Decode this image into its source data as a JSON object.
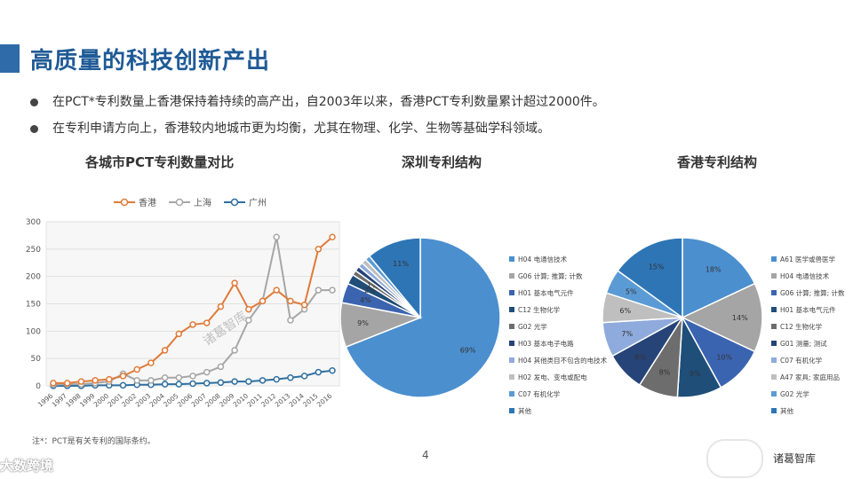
{
  "title": "高质量的科技创新产出",
  "bullets": [
    "在PCT*专利数量上香港保持着持续的高产出，自2003年以来，香港PCT专利数量累计超过2000件。",
    "在专利申请方向上，香港较内地城市更为均衡，尤其在物理、化学、生物等基础学科领域。"
  ],
  "footnote": "注*：PCT是有关专利的国际条约。",
  "page_number": "4",
  "watermarks": {
    "left": "大数跨境",
    "middle": "诸葛智库",
    "right": "诸葛智库"
  },
  "colors": {
    "hongkong": "#e07b39",
    "shanghai": "#a6a6a6",
    "guangzhou": "#2f6f9f",
    "title": "#1f5a96"
  },
  "chart_data": [
    {
      "type": "line",
      "title": "各城市PCT专利数量对比",
      "x": [
        "1996",
        "1997",
        "1998",
        "1999",
        "2000",
        "2001",
        "2002",
        "2003",
        "2004",
        "2005",
        "2006",
        "2007",
        "2008",
        "2009",
        "2010",
        "2011",
        "2012",
        "2013",
        "2014",
        "2015",
        "2016"
      ],
      "ylim": [
        0,
        300
      ],
      "yticks": [
        0,
        50,
        100,
        150,
        200,
        250,
        300
      ],
      "grid": true,
      "legend": "top",
      "series": [
        {
          "name": "香港",
          "color": "#e07b39",
          "values": [
            5,
            5,
            8,
            10,
            12,
            18,
            30,
            42,
            65,
            95,
            112,
            115,
            145,
            188,
            140,
            155,
            175,
            155,
            148,
            250,
            272
          ]
        },
        {
          "name": "上海",
          "color": "#a6a6a6",
          "values": [
            2,
            3,
            3,
            5,
            8,
            22,
            10,
            10,
            15,
            15,
            18,
            25,
            35,
            65,
            120,
            155,
            272,
            120,
            140,
            175,
            175
          ]
        },
        {
          "name": "广州",
          "color": "#2f6f9f",
          "values": [
            0,
            0,
            0,
            1,
            1,
            1,
            2,
            2,
            3,
            3,
            4,
            5,
            6,
            8,
            8,
            10,
            12,
            15,
            18,
            25,
            28
          ]
        }
      ]
    },
    {
      "type": "pie",
      "title": "深圳专利结构",
      "legend": "right",
      "slices": [
        {
          "label": "H04 电通信技术",
          "value": 69,
          "color": "#4b8fcf",
          "shown": "69%"
        },
        {
          "label": "G06 计算; 推算; 计数",
          "value": 9,
          "color": "#a5a5a5",
          "shown": "9%"
        },
        {
          "label": "H01 基本电气元件",
          "value": 4,
          "color": "#3b64b0",
          "shown": "4%"
        },
        {
          "label": "C12 生物化学",
          "value": 2,
          "color": "#1f4e79",
          "shown": "2%"
        },
        {
          "label": "G02 光学",
          "value": 1,
          "color": "#6d6d6d",
          "shown": "1%"
        },
        {
          "label": "H03 基本电子电路",
          "value": 1,
          "color": "#264478",
          "shown": ""
        },
        {
          "label": "H04 其他类目不包含的电技术",
          "value": 1,
          "color": "#8faadc",
          "shown": ""
        },
        {
          "label": "H02 发电、变电或配电",
          "value": 1,
          "color": "#bfbfbf",
          "shown": ""
        },
        {
          "label": "C07 有机化学",
          "value": 1,
          "color": "#5b9bd5",
          "shown": ""
        },
        {
          "label": "其他",
          "value": 11,
          "color": "#2e75b6",
          "shown": "11%"
        }
      ]
    },
    {
      "type": "pie",
      "title": "香港专利结构",
      "legend": "right",
      "slices": [
        {
          "label": "A61 医学或兽医学",
          "value": 18,
          "color": "#4b8fcf",
          "shown": "18%"
        },
        {
          "label": "H04 电通信技术",
          "value": 14,
          "color": "#a5a5a5",
          "shown": "14%"
        },
        {
          "label": "G06 计算; 推算; 计数",
          "value": 10,
          "color": "#3b64b0",
          "shown": "10%"
        },
        {
          "label": "H01 基本电气元件",
          "value": 9,
          "color": "#1f4e79",
          "shown": "9%"
        },
        {
          "label": "C12 生物化学",
          "value": 8,
          "color": "#6d6d6d",
          "shown": "8%"
        },
        {
          "label": "G01 测量; 测试",
          "value": 8,
          "color": "#264478",
          "shown": "8%"
        },
        {
          "label": "C07 有机化学",
          "value": 7,
          "color": "#8faadc",
          "shown": "7%"
        },
        {
          "label": "A47 家具; 家庭用品",
          "value": 6,
          "color": "#bfbfbf",
          "shown": "6%"
        },
        {
          "label": "G02 光学",
          "value": 5,
          "color": "#5b9bd5",
          "shown": "5%"
        },
        {
          "label": "其他",
          "value": 15,
          "color": "#2e75b6",
          "shown": "15%"
        }
      ]
    }
  ]
}
